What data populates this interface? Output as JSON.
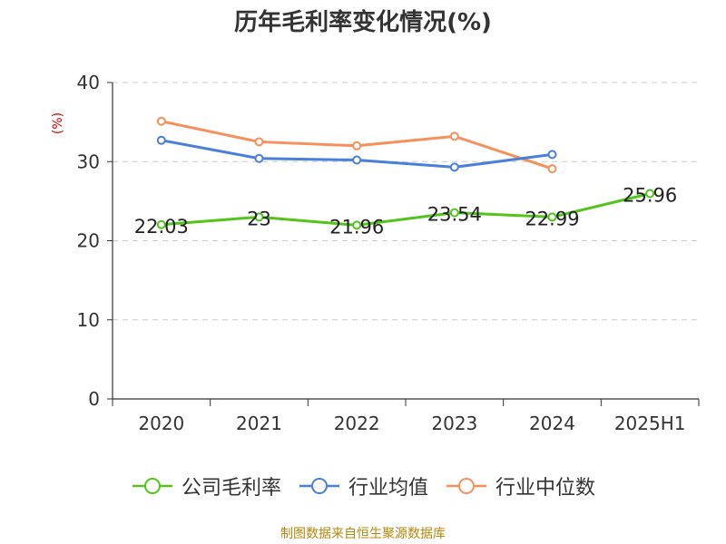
{
  "chart_data": {
    "type": "line",
    "title": "历年毛利率变化情况(%)",
    "unit_label": "(%)",
    "categories": [
      "2020",
      "2021",
      "2022",
      "2023",
      "2024",
      "2025H1"
    ],
    "ylim": [
      0,
      40
    ],
    "yticks": [
      0,
      10,
      20,
      30,
      40
    ],
    "grid": true,
    "legend_position": "bottom",
    "series": [
      {
        "name": "公司毛利率",
        "color": "#52c41a",
        "values": [
          22.03,
          23,
          21.96,
          23.54,
          22.99,
          25.96
        ],
        "labels": [
          "22.03",
          "23",
          "21.96",
          "23.54",
          "22.99",
          "25.96"
        ]
      },
      {
        "name": "行业均值",
        "color": "#4a7fdc",
        "values": [
          32.7,
          30.4,
          30.2,
          29.3,
          30.9,
          null
        ]
      },
      {
        "name": "行业中位数",
        "color": "#f7905a",
        "values": [
          35.1,
          32.5,
          32.0,
          33.2,
          29.1,
          null
        ]
      }
    ]
  },
  "source": "制图数据来自恒生聚源数据库"
}
